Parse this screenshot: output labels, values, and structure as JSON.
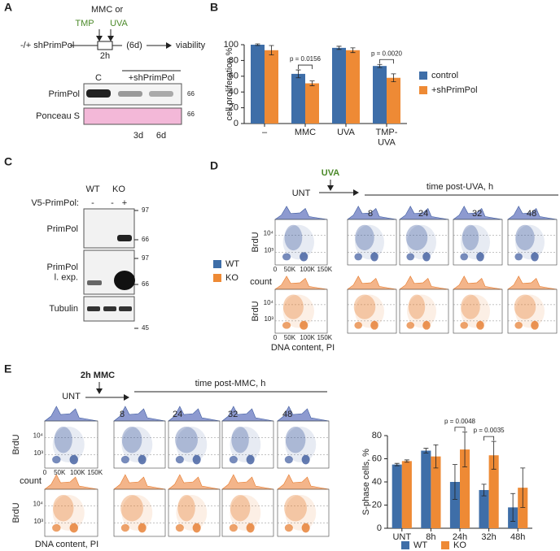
{
  "panel_labels": [
    "A",
    "B",
    "C",
    "D",
    "E"
  ],
  "panel_a": {
    "treatment": "MMC or",
    "tmp": "TMP",
    "uva": "UVA",
    "condition": "-/+ shPrimPol",
    "pulse": "2h",
    "recovery": "(6d)",
    "readout": "viability",
    "lanes": [
      "C",
      "+shPrimPol"
    ],
    "timepoints": [
      "3d",
      "6d"
    ],
    "rows": [
      "PrimPol",
      "Ponceau S"
    ],
    "markers": [
      "66",
      "66"
    ]
  },
  "panel_c": {
    "genotypes": [
      "WT",
      "KO"
    ],
    "construct": "V5-PrimPol:",
    "construct_lanes": [
      "-",
      "-",
      "+"
    ],
    "rows": [
      "PrimPol",
      "PrimPol\nl. exp.",
      "Tubulin"
    ],
    "markers": [
      "97",
      "66",
      "97",
      "66",
      "45"
    ]
  },
  "panel_d": {
    "treatment": "UVA",
    "untreated": "UNT",
    "time_title": "time post-UVA, h",
    "times": [
      "8",
      "24",
      "32",
      "48"
    ],
    "row_labels": [
      "BrdU",
      "count",
      "BrdU"
    ],
    "x_label": "DNA content, PI",
    "flow_y_ticks": [
      "10⁴",
      "10³"
    ],
    "flow_x_ticks": [
      "0",
      "50K",
      "100K",
      "150K"
    ],
    "legend": [
      {
        "name": "WT",
        "color": "#3e6ea8"
      },
      {
        "name": "KO",
        "color": "#ee8a35"
      }
    ]
  },
  "panel_e": {
    "treatment": "2h MMC",
    "untreated": "UNT",
    "time_title": "time post-MMC, h",
    "times": [
      "8",
      "24",
      "32",
      "48"
    ],
    "row_labels": [
      "BrdU",
      "count",
      "BrdU"
    ],
    "x_label": "DNA content, PI",
    "flow_y_ticks": [
      "10⁴",
      "10³"
    ],
    "flow_x_ticks": [
      "0",
      "50K",
      "100K",
      "150K"
    ]
  },
  "chart_data": [
    {
      "type": "bar",
      "y_label": "cell proliferation %",
      "categories": [
        "–",
        "MMC",
        "UVA",
        "TMP-\nUVA"
      ],
      "series": [
        {
          "name": "control",
          "color": "#3e6ea8",
          "values": [
            100,
            63,
            96,
            73
          ],
          "errors": [
            1,
            5,
            2,
            2
          ]
        },
        {
          "name": "+shPrimPol",
          "color": "#ee8a35",
          "values": [
            93,
            51,
            93,
            58
          ],
          "errors": [
            6,
            3,
            3,
            5
          ]
        }
      ],
      "ylim": [
        0,
        100
      ],
      "yticks": [
        0,
        20,
        40,
        60,
        80,
        100
      ],
      "annotations": [
        "p = 0.0156",
        "p = 0.0020"
      ],
      "legend": "right"
    },
    {
      "type": "bar",
      "y_label": "S-phase cells, %",
      "categories": [
        "UNT",
        "8h",
        "24h",
        "32h",
        "48h"
      ],
      "series": [
        {
          "name": "WT",
          "color": "#3e6ea8",
          "values": [
            55,
            67,
            40,
            33,
            18
          ],
          "errors": [
            1,
            2,
            15,
            5,
            12
          ]
        },
        {
          "name": "KO",
          "color": "#ee8a35",
          "values": [
            58,
            62,
            68,
            63,
            35
          ],
          "errors": [
            1,
            10,
            15,
            12,
            17
          ]
        }
      ],
      "ylim": [
        0,
        80
      ],
      "yticks": [
        0,
        20,
        40,
        60,
        80
      ],
      "annotations": [
        "p = 0.0048",
        "p = 0.0035"
      ],
      "legend": "bottom"
    }
  ]
}
